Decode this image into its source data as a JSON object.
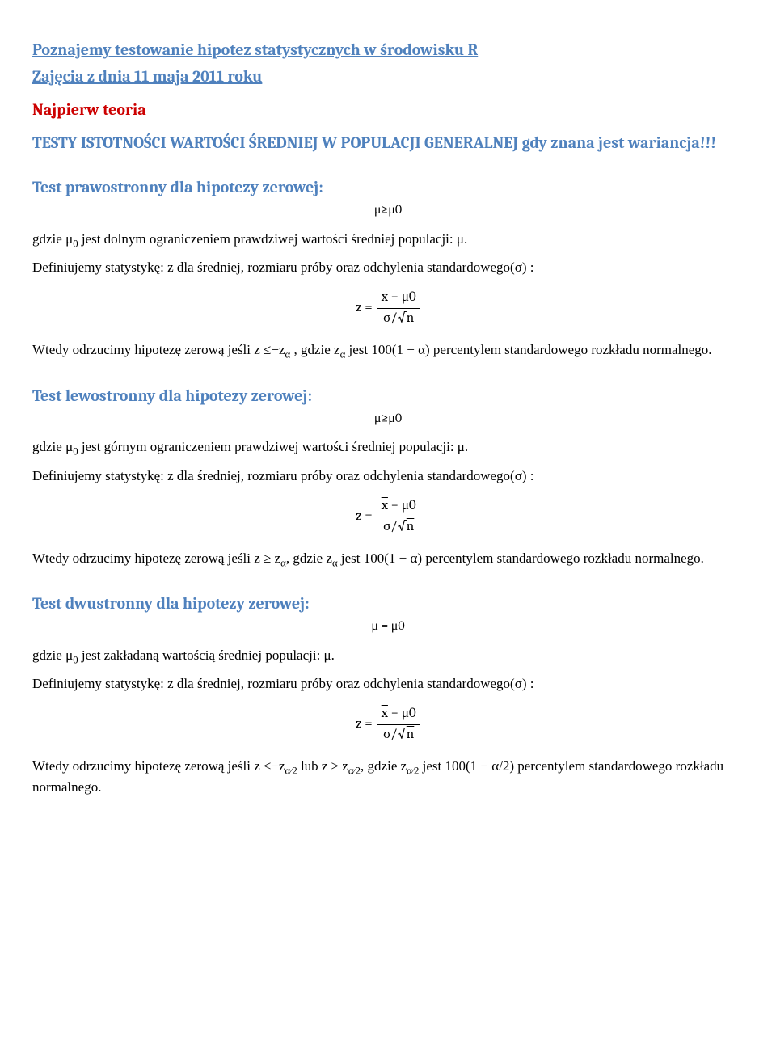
{
  "colors": {
    "heading_blue": "#4f81bd",
    "heading_red": "#cc0000",
    "text": "#000000",
    "background": "#ffffff"
  },
  "typography": {
    "heading_fontsize_pt": 15,
    "body_fontsize_pt": 12,
    "body_font": "Times New Roman",
    "heading_font": "Cambria"
  },
  "header": {
    "title": "Poznajemy testowanie hipotez statystycznych w środowisku R",
    "subtitle": "Zajęcia z dnia 11 maja 2011 roku",
    "intro": "Najpierw teoria",
    "topic": "TESTY ISTOTNOŚCI WARTOŚCI ŚREDNIEJ W POPULACJI GENERALNEJ gdy znana jest wariancja!!!"
  },
  "formula": {
    "z_eq": "z =",
    "num": "x̄ − μ0",
    "den": "σ⁄√n",
    "num_raw_xbar": "x",
    "num_raw_tail": " − μ0",
    "den_sigma": "σ/",
    "den_sqrt_n": "n"
  },
  "sections": [
    {
      "title": "Test prawostronny dla hipotezy zerowej:",
      "hyp": "μ≥μ0",
      "intro_pre": "gdzie μ",
      "intro_sub": "0",
      "intro_post": " jest dolnym ograniczeniem prawdziwej wartości średniej populacji: μ.",
      "define": "Definiujemy statystykę:  z dla średniej, rozmiaru próby oraz odchylenia standardowego(σ) :",
      "reject_pre": "Wtedy odrzucimy hipotezę zerową jeśli z ≤−z",
      "reject_sub": "α",
      "reject_mid": " , gdzie z",
      "reject_sub2": "α",
      "reject_post": " jest 100(1 − α) percentylem standardowego rozkładu normalnego."
    },
    {
      "title": "Test lewostronny dla hipotezy zerowej:",
      "hyp": "μ≥μ0",
      "intro_pre": "gdzie μ",
      "intro_sub": "0",
      "intro_post": " jest górnym ograniczeniem prawdziwej wartości średniej populacji: μ.",
      "define": "Definiujemy statystykę: z dla średniej, rozmiaru próby oraz odchylenia standardowego(σ) :",
      "reject_pre": "Wtedy odrzucimy hipotezę zerową jeśli z ≥ z",
      "reject_sub": "α",
      "reject_mid": ", gdzie z",
      "reject_sub2": "α",
      "reject_post": " jest 100(1 − α) percentylem standardowego rozkładu normalnego."
    },
    {
      "title": "Test dwustronny dla hipotezy zerowej:",
      "hyp": "μ = μ0",
      "intro_pre": "gdzie μ",
      "intro_sub": "0",
      "intro_post": " jest zakładaną wartością średniej populacji: μ.",
      "define": "Definiujemy statystykę: z dla średniej, rozmiaru próby oraz odchylenia standardowego(σ) :",
      "reject_pre": "Wtedy odrzucimy hipotezę zerową jeśli z ≤−z",
      "reject_sub": "α∕2",
      "reject_mid": " lub z ≥ z",
      "reject_sub2": "α∕2",
      "reject_mid2": ", gdzie z",
      "reject_sub3": "α∕2",
      "reject_post": " jest 100(1 − α/2) percentylem standardowego rozkładu normalnego."
    }
  ]
}
